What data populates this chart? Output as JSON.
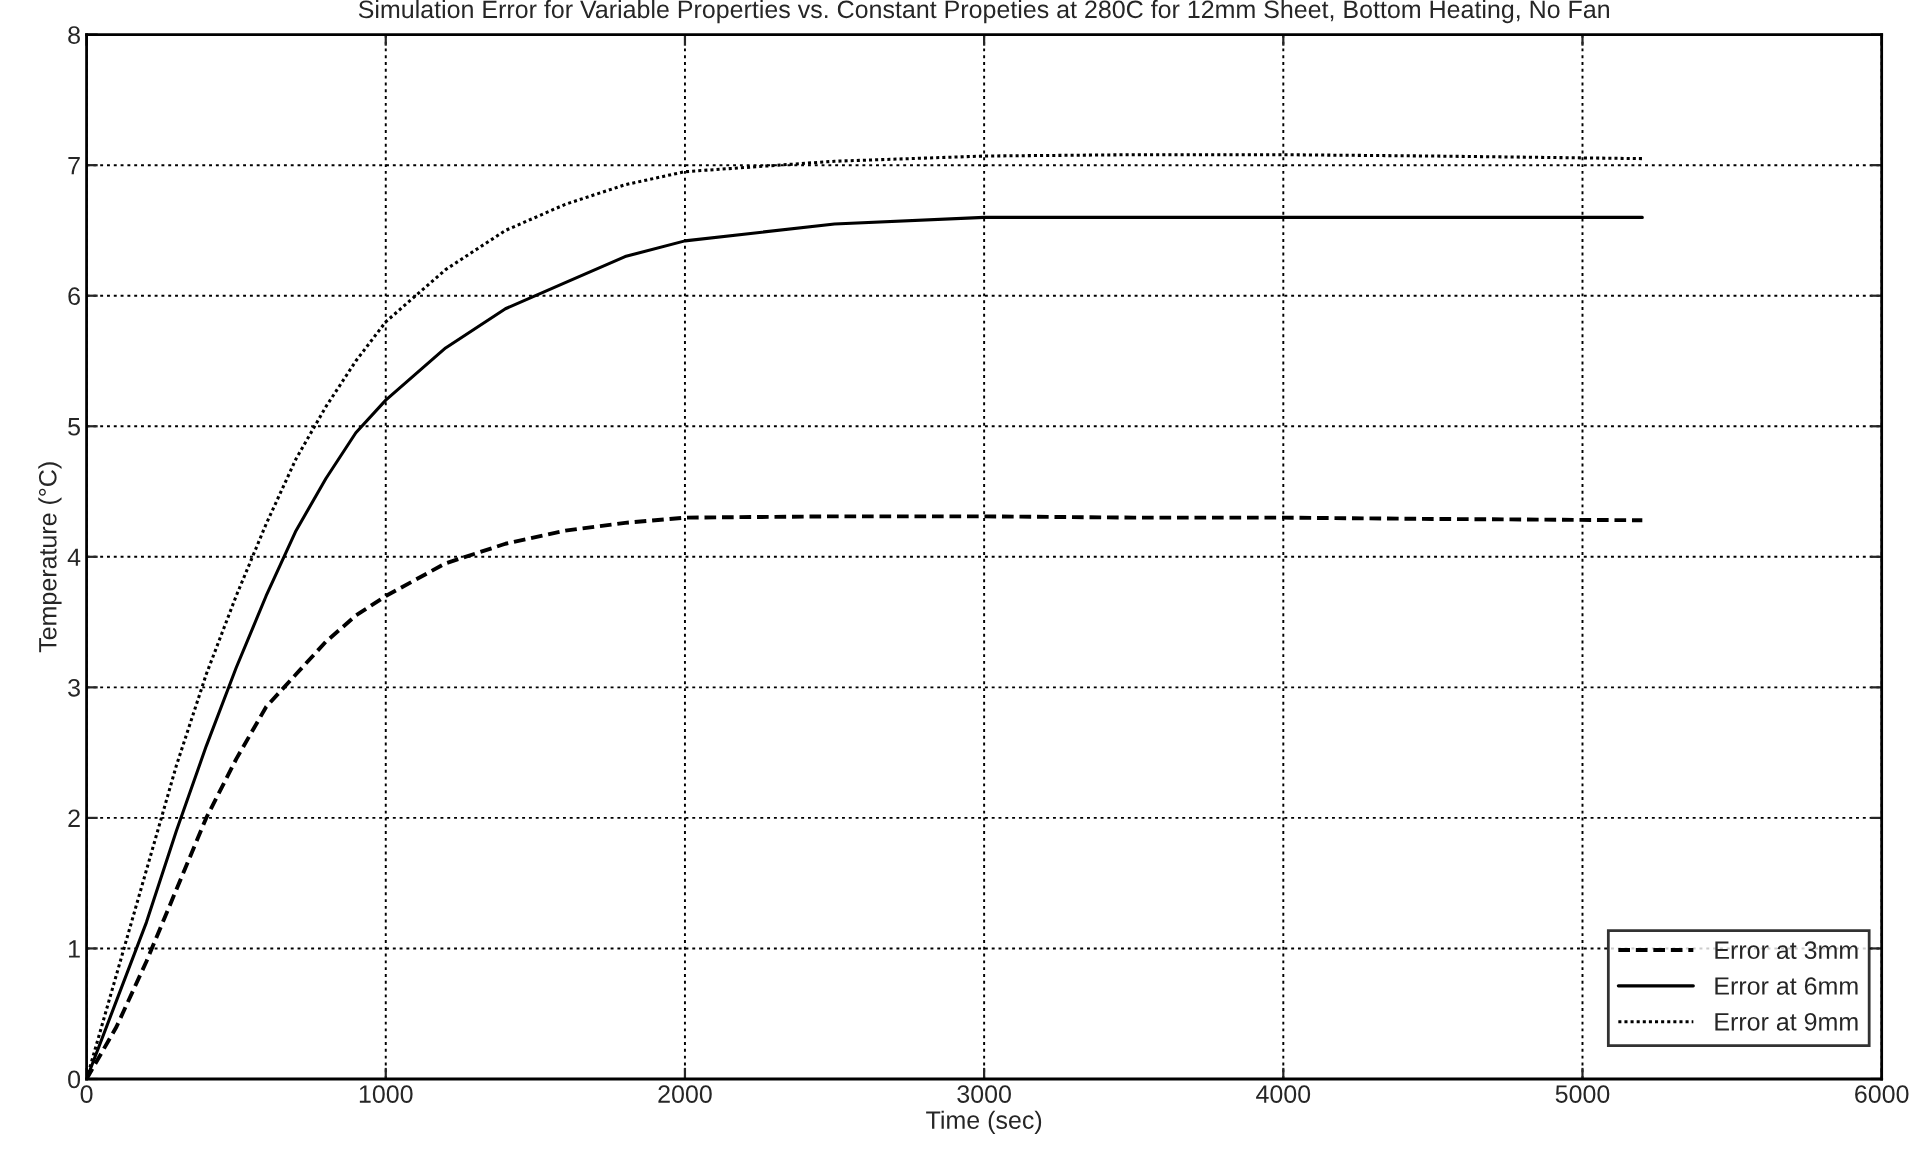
{
  "chart_data": {
    "type": "line",
    "title": "Simulation Error for Variable Properties vs. Constant Propeties at 280C for 12mm Sheet, Bottom Heating, No Fan",
    "xlabel": "Time (sec)",
    "ylabel": "Temperature (°C)",
    "x": [
      0,
      100,
      200,
      300,
      400,
      500,
      600,
      700,
      800,
      900,
      1000,
      1200,
      1400,
      1600,
      1800,
      2000,
      2500,
      3000,
      3500,
      4000,
      4500,
      5200
    ],
    "series": [
      {
        "name": "Error at 3mm",
        "color": "#000000",
        "line_style": "dashed",
        "values": [
          0,
          0.4,
          0.9,
          1.45,
          2.0,
          2.45,
          2.85,
          3.1,
          3.35,
          3.55,
          3.7,
          3.95,
          4.1,
          4.2,
          4.26,
          4.3,
          4.31,
          4.31,
          4.3,
          4.3,
          4.29,
          4.28
        ]
      },
      {
        "name": "Error at 6mm",
        "color": "#000000",
        "line_style": "solid",
        "values": [
          0,
          0.6,
          1.2,
          1.9,
          2.55,
          3.15,
          3.7,
          4.2,
          4.6,
          4.95,
          5.2,
          5.6,
          5.9,
          6.1,
          6.3,
          6.42,
          6.55,
          6.6,
          6.6,
          6.6,
          6.6,
          6.6
        ]
      },
      {
        "name": "Error at 9mm",
        "color": "#000000",
        "line_style": "dotted",
        "values": [
          0,
          0.8,
          1.6,
          2.4,
          3.1,
          3.7,
          4.25,
          4.75,
          5.15,
          5.5,
          5.8,
          6.2,
          6.5,
          6.7,
          6.85,
          6.95,
          7.03,
          7.07,
          7.08,
          7.08,
          7.07,
          7.05
        ]
      }
    ],
    "xlim": [
      0,
      6000
    ],
    "xticks": [
      0,
      1000,
      2000,
      3000,
      4000,
      5000,
      6000
    ],
    "ylim": [
      0,
      8
    ],
    "yticks": [
      0,
      1,
      2,
      3,
      4,
      5,
      6,
      7,
      8
    ],
    "grid": true,
    "legend": "bottom right"
  }
}
